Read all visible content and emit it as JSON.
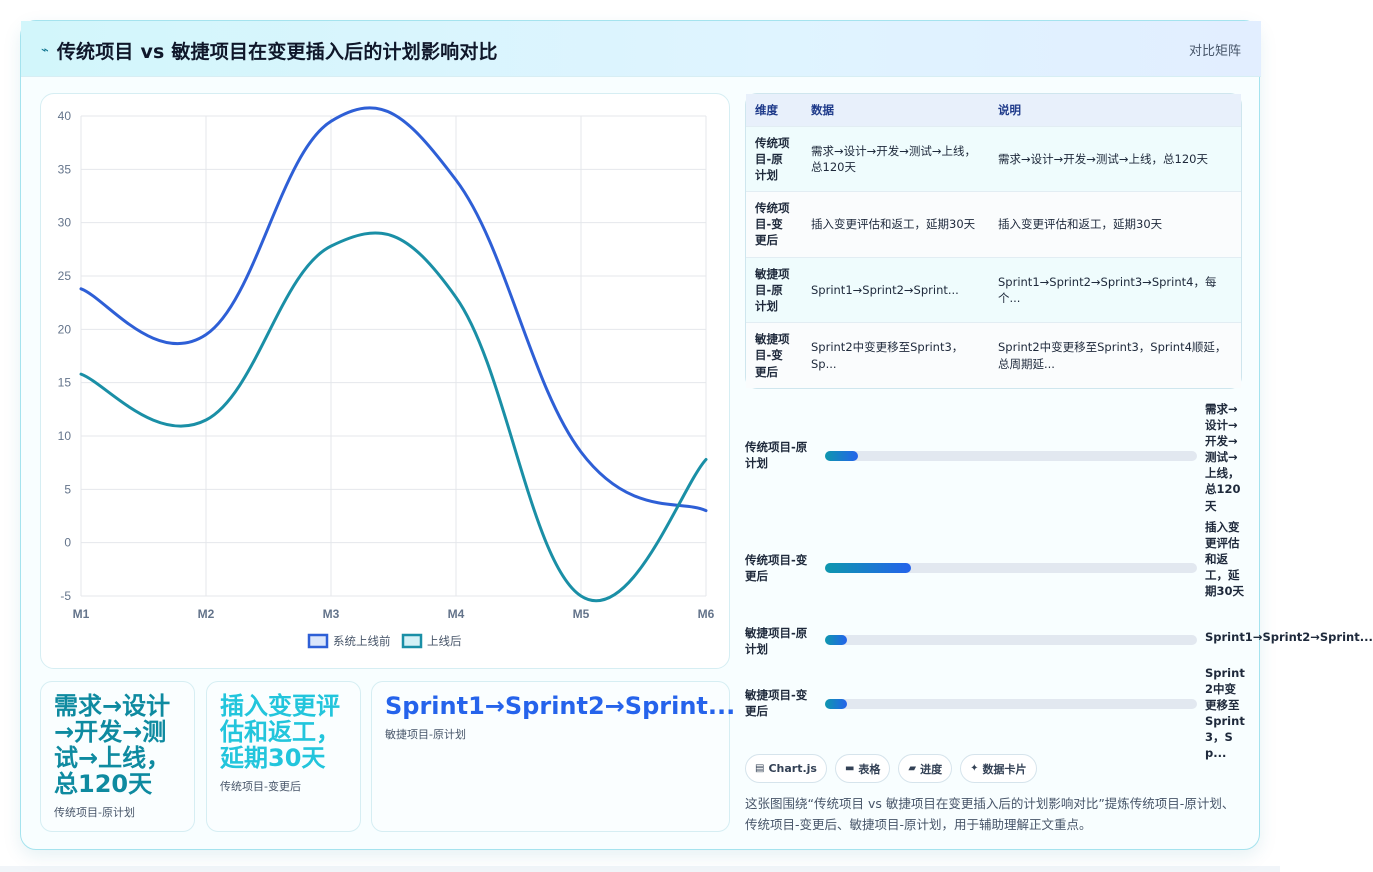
{
  "header": {
    "icon": "lightning-icon",
    "title": "传统项目 vs 敏捷项目在变更插入后的计划影响对比",
    "right_label": "对比矩阵"
  },
  "colors": {
    "series1": "#2e5fd6",
    "series2": "#1a8fa6",
    "accent_cyan": "#0e97ae",
    "accent_blue": "#2563eb"
  },
  "chart_data": {
    "type": "line",
    "categories": [
      "M1",
      "M2",
      "M3",
      "M4",
      "M5",
      "M6"
    ],
    "series": [
      {
        "name": "系统上线前",
        "values": [
          23.8,
          19.5,
          39.5,
          34,
          8.5,
          3
        ]
      },
      {
        "name": "上线后",
        "values": [
          15.8,
          11.5,
          27.8,
          23,
          -5,
          7.8
        ]
      }
    ],
    "ylim": [
      -5,
      40
    ],
    "yticks": [
      "40",
      "35",
      "30",
      "25",
      "20",
      "15",
      "10",
      "5",
      "0",
      "-5"
    ],
    "grid": true,
    "legend_position": "bottom-center"
  },
  "stats": [
    {
      "value": "需求→设计→开发→测试→上线，总120天",
      "label": "传统项目-原计划"
    },
    {
      "value": "插入变更评估和返工，延期30天",
      "label": "传统项目-变更后"
    },
    {
      "value": "Sprint1→Sprint2→Sprint...",
      "label": "敏捷项目-原计划"
    }
  ],
  "table": {
    "headers": [
      "维度",
      "数据",
      "说明"
    ],
    "rows": [
      {
        "dim": "传统项目-原计划",
        "data": "需求→设计→开发→测试→上线，总120天",
        "note": "需求→设计→开发→测试→上线，总120天"
      },
      {
        "dim": "传统项目-变更后",
        "data": "插入变更评估和返工，延期30天",
        "note": "插入变更评估和返工，延期30天"
      },
      {
        "dim": "敏捷项目-原计划",
        "data": "Sprint1→Sprint2→Sprint...",
        "note": "Sprint1→Sprint2→Sprint3→Sprint4，每个..."
      },
      {
        "dim": "敏捷项目-变更后",
        "data": "Sprint2中变更移至Sprint3，Sp...",
        "note": "Sprint2中变更移至Sprint3，Sprint4顺延，总周期延..."
      }
    ]
  },
  "progress": [
    {
      "label": "传统项目-原计划",
      "value": "需求→设计→开发→测试→上线，总120天",
      "fraction": 0.09
    },
    {
      "label": "传统项目-变更后",
      "value": "插入变更评估和返工，延期30天",
      "fraction": 0.23
    },
    {
      "label": "敏捷项目-原计划",
      "value": "Sprint1→Sprint2→Sprint...",
      "fraction": 0.06
    },
    {
      "label": "敏捷项目-变更后",
      "value": "Sprint2中变更移至Sprint3，Sp...",
      "fraction": 0.06
    }
  ],
  "chips": [
    {
      "icon": "chart-icon",
      "label": "Chart.js"
    },
    {
      "icon": "table-icon",
      "label": "表格"
    },
    {
      "icon": "progress-icon",
      "label": "进度"
    },
    {
      "icon": "sparkle-icon",
      "label": "数据卡片"
    }
  ],
  "footnote": "这张图围绕“传统项目 vs 敏捷项目在变更插入后的计划影响对比”提炼传统项目-原计划、传统项目-变更后、敏捷项目-原计划，用于辅助理解正文重点。"
}
